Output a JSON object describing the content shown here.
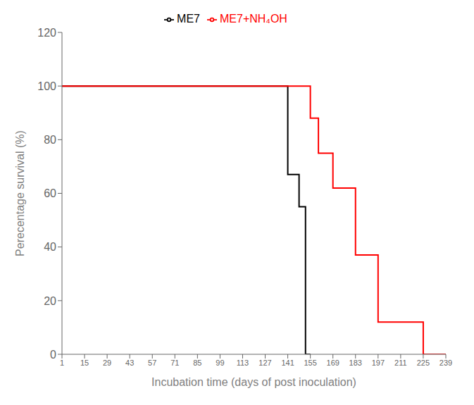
{
  "chart_data": {
    "type": "line",
    "xlabel": "Incubation time (days of  post inoculation)",
    "ylabel": "Perecentage survival (%)",
    "xlim": [
      1,
      239
    ],
    "ylim": [
      0,
      120
    ],
    "xticks": [
      1,
      15,
      29,
      43,
      57,
      71,
      85,
      99,
      113,
      127,
      141,
      155,
      169,
      183,
      197,
      211,
      225,
      239
    ],
    "yticks": [
      0,
      20,
      40,
      60,
      80,
      100,
      120
    ],
    "grid": false,
    "legend": "top",
    "series": [
      {
        "name": "ME7",
        "color": "#000000",
        "x": [
          1,
          141,
          141,
          148,
          148,
          152,
          152,
          155,
          155
        ],
        "values": [
          100,
          100,
          67,
          67,
          55,
          55,
          0,
          0,
          0
        ]
      },
      {
        "name": "ME7+NH₄OH",
        "color": "#ff0000",
        "x": [
          1,
          155,
          155,
          160,
          160,
          169,
          169,
          183,
          183,
          197,
          197,
          225,
          225,
          239,
          239
        ],
        "values": [
          100,
          100,
          88,
          88,
          75,
          75,
          62,
          62,
          37,
          37,
          12,
          12,
          0,
          0,
          0
        ]
      }
    ]
  }
}
